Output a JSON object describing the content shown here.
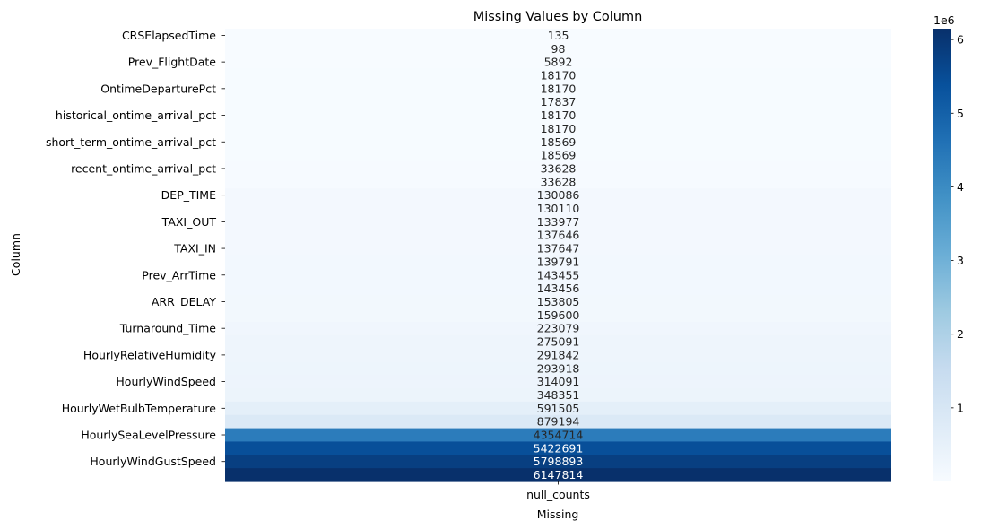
{
  "chart_data": {
    "type": "heatmap",
    "title": "Missing Values by Column",
    "xlabel": "Missing",
    "ylabel": "Column",
    "x_categories": [
      "null_counts"
    ],
    "row_tick_labels": [
      "CRSElapsedTime",
      "Prev_FlightDate",
      "OntimeDeparturePct",
      "historical_ontime_arrival_pct",
      "short_term_ontime_arrival_pct",
      "recent_ontime_arrival_pct",
      "DEP_TIME",
      "TAXI_OUT",
      "TAXI_IN",
      "Prev_ArrTime",
      "ARR_DELAY",
      "Turnaround_Time",
      "HourlyRelativeHumidity",
      "HourlyWindSpeed",
      "HourlyWetBulbTemperature",
      "HourlySeaLevelPressure",
      "HourlyWindGustSpeed"
    ],
    "values": [
      135,
      98,
      5892,
      18170,
      18170,
      17837,
      18170,
      18170,
      18569,
      18569,
      33628,
      33628,
      130086,
      130110,
      133977,
      137646,
      137647,
      139791,
      143455,
      143456,
      153805,
      159600,
      223079,
      275091,
      291842,
      293918,
      314091,
      348351,
      591505,
      879194,
      4354714,
      5422691,
      5798893,
      6147814
    ],
    "colormap": "Blues",
    "vmin": 98,
    "vmax": 6147814,
    "colorbar": {
      "ticks": [
        1,
        2,
        3,
        4,
        5,
        6
      ],
      "scale_label": "1e6"
    }
  }
}
